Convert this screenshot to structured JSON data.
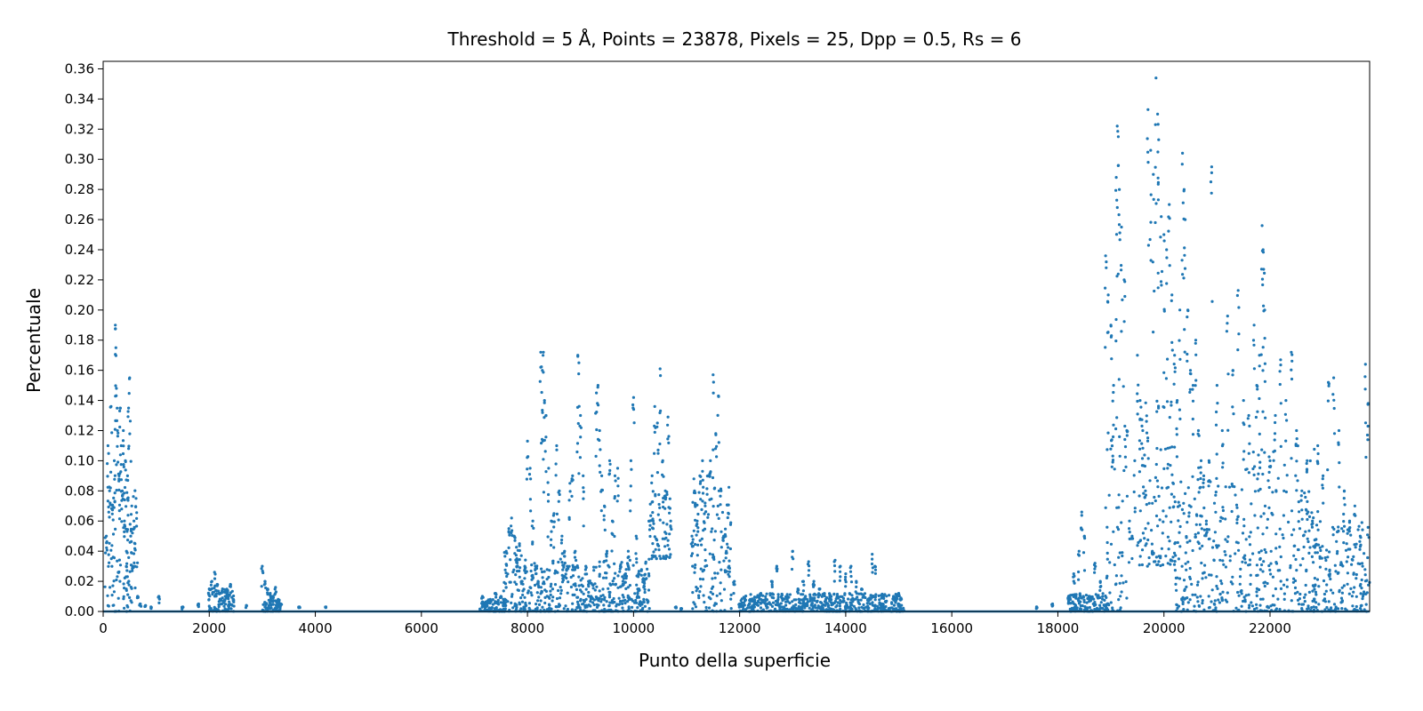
{
  "chart_data": {
    "type": "scatter",
    "title": "Threshold = 5 Å, Points = 23878, Pixels = 25, Dpp = 0.5, Rs = 6",
    "xlabel": "Punto della superficie",
    "ylabel": "Percentuale",
    "xlim": [
      0,
      23878
    ],
    "ylim": [
      0,
      0.365
    ],
    "x_ticks": [
      0,
      2000,
      4000,
      6000,
      8000,
      10000,
      12000,
      14000,
      16000,
      18000,
      20000,
      22000
    ],
    "y_ticks": [
      0.0,
      0.02,
      0.04,
      0.06,
      0.08,
      0.1,
      0.12,
      0.14,
      0.16,
      0.18,
      0.2,
      0.22,
      0.24,
      0.26,
      0.28,
      0.3,
      0.32,
      0.34,
      0.36
    ],
    "grid": false,
    "marker_color": "#1f77b4",
    "series": [
      {
        "points": [
          [
            60,
            0.05
          ],
          [
            90,
            0.11
          ],
          [
            120,
            0.08
          ],
          [
            150,
            0.136
          ],
          [
            180,
            0.07
          ],
          [
            210,
            0.1
          ],
          [
            230,
            0.19
          ],
          [
            240,
            0.175
          ],
          [
            250,
            0.148
          ],
          [
            270,
            0.12
          ],
          [
            300,
            0.09
          ],
          [
            320,
            0.135
          ],
          [
            340,
            0.11
          ],
          [
            360,
            0.08
          ],
          [
            380,
            0.12
          ],
          [
            400,
            0.06
          ],
          [
            420,
            0.1
          ],
          [
            440,
            0.04
          ],
          [
            460,
            0.09
          ],
          [
            480,
            0.135
          ],
          [
            500,
            0.155
          ],
          [
            520,
            0.05
          ],
          [
            540,
            0.07
          ],
          [
            560,
            0.03
          ],
          [
            580,
            0.06
          ],
          [
            600,
            0.045
          ],
          [
            620,
            0.075
          ],
          [
            650,
            0.01
          ],
          [
            700,
            0.005
          ],
          [
            800,
            0.004
          ],
          [
            900,
            0.003
          ],
          [
            1050,
            0.01
          ],
          [
            1500,
            0.003
          ],
          [
            1800,
            0.005
          ],
          [
            2000,
            0.015
          ],
          [
            2050,
            0.02
          ],
          [
            2100,
            0.026
          ],
          [
            2150,
            0.018
          ],
          [
            2200,
            0.012
          ],
          [
            2250,
            0.015
          ],
          [
            2300,
            0.01
          ],
          [
            2350,
            0.014
          ],
          [
            2400,
            0.018
          ],
          [
            2450,
            0.008
          ],
          [
            2700,
            0.004
          ],
          [
            3000,
            0.03
          ],
          [
            3050,
            0.02
          ],
          [
            3100,
            0.015
          ],
          [
            3150,
            0.012
          ],
          [
            3200,
            0.01
          ],
          [
            3250,
            0.016
          ],
          [
            3300,
            0.008
          ],
          [
            3350,
            0.005
          ],
          [
            3700,
            0.003
          ],
          [
            4200,
            0.003
          ],
          [
            7150,
            0.01
          ],
          [
            7200,
            0.005
          ],
          [
            7300,
            0.008
          ],
          [
            7400,
            0.012
          ],
          [
            7500,
            0.01
          ],
          [
            7600,
            0.04
          ],
          [
            7650,
            0.055
          ],
          [
            7700,
            0.062
          ],
          [
            7750,
            0.05
          ],
          [
            7800,
            0.035
          ],
          [
            7850,
            0.045
          ],
          [
            7900,
            0.02
          ],
          [
            7950,
            0.03
          ],
          [
            8000,
            0.113
          ],
          [
            8050,
            0.095
          ],
          [
            8100,
            0.06
          ],
          [
            8150,
            0.03
          ],
          [
            8200,
            0.02
          ],
          [
            8250,
            0.172
          ],
          [
            8280,
            0.16
          ],
          [
            8300,
            0.172
          ],
          [
            8320,
            0.14
          ],
          [
            8350,
            0.13
          ],
          [
            8400,
            0.095
          ],
          [
            8450,
            0.06
          ],
          [
            8500,
            0.065
          ],
          [
            8550,
            0.11
          ],
          [
            8600,
            0.08
          ],
          [
            8650,
            0.05
          ],
          [
            8700,
            0.04
          ],
          [
            8750,
            0.03
          ],
          [
            8800,
            0.085
          ],
          [
            8850,
            0.09
          ],
          [
            8900,
            0.04
          ],
          [
            8950,
            0.17
          ],
          [
            8970,
            0.165
          ],
          [
            9000,
            0.13
          ],
          [
            9050,
            0.09
          ],
          [
            9100,
            0.03
          ],
          [
            9150,
            0.02
          ],
          [
            9200,
            0.01
          ],
          [
            9300,
            0.145
          ],
          [
            9330,
            0.15
          ],
          [
            9360,
            0.12
          ],
          [
            9400,
            0.09
          ],
          [
            9450,
            0.07
          ],
          [
            9500,
            0.04
          ],
          [
            9550,
            0.1
          ],
          [
            9600,
            0.06
          ],
          [
            9650,
            0.09
          ],
          [
            9700,
            0.095
          ],
          [
            9750,
            0.03
          ],
          [
            9800,
            0.02
          ],
          [
            9850,
            0.025
          ],
          [
            9900,
            0.04
          ],
          [
            9950,
            0.1
          ],
          [
            10000,
            0.142
          ],
          [
            10050,
            0.05
          ],
          [
            10100,
            0.015
          ],
          [
            10200,
            0.02
          ],
          [
            10300,
            0.06
          ],
          [
            10350,
            0.09
          ],
          [
            10400,
            0.136
          ],
          [
            10450,
            0.125
          ],
          [
            10500,
            0.161
          ],
          [
            10550,
            0.1
          ],
          [
            10600,
            0.08
          ],
          [
            10650,
            0.129
          ],
          [
            10700,
            0.06
          ],
          [
            10800,
            0.003
          ],
          [
            10900,
            0.002
          ],
          [
            11100,
            0.05
          ],
          [
            11150,
            0.08
          ],
          [
            11200,
            0.06
          ],
          [
            11250,
            0.09
          ],
          [
            11300,
            0.1
          ],
          [
            11350,
            0.07
          ],
          [
            11400,
            0.09
          ],
          [
            11450,
            0.1
          ],
          [
            11500,
            0.157
          ],
          [
            11550,
            0.118
          ],
          [
            11600,
            0.143
          ],
          [
            11650,
            0.08
          ],
          [
            11700,
            0.05
          ],
          [
            11750,
            0.04
          ],
          [
            11800,
            0.03
          ],
          [
            11900,
            0.02
          ],
          [
            12000,
            0.005
          ],
          [
            12200,
            0.008
          ],
          [
            12400,
            0.012
          ],
          [
            12600,
            0.02
          ],
          [
            12700,
            0.03
          ],
          [
            12900,
            0.01
          ],
          [
            13000,
            0.04
          ],
          [
            13100,
            0.015
          ],
          [
            13200,
            0.02
          ],
          [
            13300,
            0.033
          ],
          [
            13400,
            0.02
          ],
          [
            13500,
            0.015
          ],
          [
            13700,
            0.01
          ],
          [
            13800,
            0.034
          ],
          [
            13900,
            0.03
          ],
          [
            14000,
            0.025
          ],
          [
            14100,
            0.03
          ],
          [
            14200,
            0.02
          ],
          [
            14300,
            0.015
          ],
          [
            14500,
            0.038
          ],
          [
            14550,
            0.03
          ],
          [
            14700,
            0.005
          ],
          [
            14900,
            0.01
          ],
          [
            15000,
            0.012
          ],
          [
            17600,
            0.003
          ],
          [
            17900,
            0.005
          ],
          [
            18200,
            0.01
          ],
          [
            18300,
            0.025
          ],
          [
            18400,
            0.04
          ],
          [
            18450,
            0.066
          ],
          [
            18500,
            0.05
          ],
          [
            18600,
            0.01
          ],
          [
            18700,
            0.032
          ],
          [
            18800,
            0.02
          ],
          [
            18900,
            0.236
          ],
          [
            18950,
            0.21
          ],
          [
            19000,
            0.19
          ],
          [
            19050,
            0.15
          ],
          [
            19100,
            0.288
          ],
          [
            19120,
            0.322
          ],
          [
            19140,
            0.315
          ],
          [
            19160,
            0.28
          ],
          [
            19200,
            0.255
          ],
          [
            19250,
            0.22
          ],
          [
            19300,
            0.12
          ],
          [
            19350,
            0.06
          ],
          [
            19400,
            0.05
          ],
          [
            19450,
            0.1
          ],
          [
            19500,
            0.17
          ],
          [
            19550,
            0.14
          ],
          [
            19600,
            0.12
          ],
          [
            19650,
            0.08
          ],
          [
            19700,
            0.333
          ],
          [
            19750,
            0.306
          ],
          [
            19800,
            0.29
          ],
          [
            19850,
            0.354
          ],
          [
            19880,
            0.33
          ],
          [
            19900,
            0.313
          ],
          [
            19950,
            0.262
          ],
          [
            20000,
            0.25
          ],
          [
            20050,
            0.24
          ],
          [
            20100,
            0.27
          ],
          [
            20150,
            0.21
          ],
          [
            20200,
            0.17
          ],
          [
            20250,
            0.14
          ],
          [
            20300,
            0.2
          ],
          [
            20350,
            0.304
          ],
          [
            20380,
            0.28
          ],
          [
            20400,
            0.26
          ],
          [
            20450,
            0.2
          ],
          [
            20500,
            0.16
          ],
          [
            20550,
            0.15
          ],
          [
            20600,
            0.18
          ],
          [
            20650,
            0.12
          ],
          [
            20700,
            0.1
          ],
          [
            20750,
            0.09
          ],
          [
            20800,
            0.06
          ],
          [
            20850,
            0.1
          ],
          [
            20900,
            0.295
          ],
          [
            21000,
            0.15
          ],
          [
            21100,
            0.12
          ],
          [
            21200,
            0.196
          ],
          [
            21300,
            0.16
          ],
          [
            21400,
            0.213
          ],
          [
            21500,
            0.14
          ],
          [
            21600,
            0.13
          ],
          [
            21700,
            0.19
          ],
          [
            21750,
            0.15
          ],
          [
            21800,
            0.17
          ],
          [
            21850,
            0.256
          ],
          [
            21870,
            0.24
          ],
          [
            21880,
            0.227
          ],
          [
            21900,
            0.2
          ],
          [
            22000,
            0.1
          ],
          [
            22100,
            0.13
          ],
          [
            22200,
            0.167
          ],
          [
            22300,
            0.14
          ],
          [
            22400,
            0.172
          ],
          [
            22500,
            0.12
          ],
          [
            22600,
            0.08
          ],
          [
            22700,
            0.1
          ],
          [
            22800,
            0.06
          ],
          [
            22900,
            0.11
          ],
          [
            23000,
            0.09
          ],
          [
            23100,
            0.152
          ],
          [
            23200,
            0.155
          ],
          [
            23300,
            0.12
          ],
          [
            23400,
            0.08
          ],
          [
            23500,
            0.06
          ],
          [
            23600,
            0.07
          ],
          [
            23700,
            0.05
          ],
          [
            23800,
            0.164
          ],
          [
            23850,
            0.138
          ]
        ],
        "dense_bands": [
          {
            "x": [
              30,
              650
            ],
            "y": [
              0.0,
              0.1
            ]
          },
          {
            "x": [
              1980,
              2470
            ],
            "y": [
              0.0,
              0.015
            ]
          },
          {
            "x": [
              3000,
              3350
            ],
            "y": [
              0.0,
              0.008
            ]
          },
          {
            "x": [
              7100,
              7600
            ],
            "y": [
              0.0,
              0.008
            ]
          },
          {
            "x": [
              7550,
              8000
            ],
            "y": [
              0.0,
              0.045
            ]
          },
          {
            "x": [
              8000,
              10300
            ],
            "y": [
              0.0,
              0.035
            ]
          },
          {
            "x": [
              10300,
              10700
            ],
            "y": [
              0.035,
              0.08
            ]
          },
          {
            "x": [
              11100,
              11850
            ],
            "y": [
              0.0,
              0.09
            ]
          },
          {
            "x": [
              12000,
              15100
            ],
            "y": [
              0.0,
              0.012
            ]
          },
          {
            "x": [
              18200,
              18950
            ],
            "y": [
              0.0,
              0.012
            ]
          },
          {
            "x": [
              18900,
              19300
            ],
            "y": [
              0.0,
              0.13
            ]
          },
          {
            "x": [
              19500,
              20200
            ],
            "y": [
              0.03,
              0.14
            ]
          },
          {
            "x": [
              20200,
              21500
            ],
            "y": [
              0.0,
              0.09
            ]
          },
          {
            "x": [
              21500,
              22900
            ],
            "y": [
              0.0,
              0.11
            ]
          },
          {
            "x": [
              22800,
              23878
            ],
            "y": [
              0.0,
              0.06
            ]
          }
        ],
        "baseline": {
          "x": [
            0,
            23878
          ],
          "y": 0.0
        }
      }
    ]
  }
}
